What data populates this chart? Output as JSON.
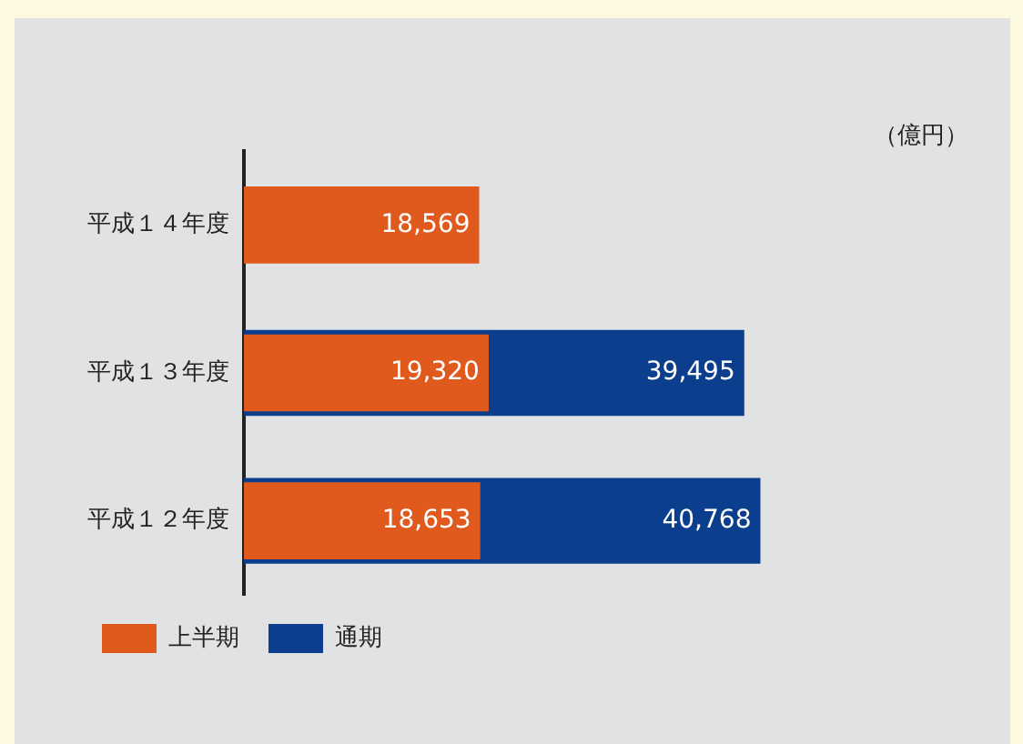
{
  "chart_data": {
    "type": "bar",
    "orientation": "horizontal",
    "annotations": [
      "（億円）"
    ],
    "categories": [
      "平成１４年度",
      "平成１３年度",
      "平成１２年度"
    ],
    "series": [
      {
        "name": "上半期",
        "color": "#e05a1e",
        "values": [
          18569,
          19320,
          18653
        ],
        "value_labels": [
          "18,569",
          "19,320",
          "18,653"
        ]
      },
      {
        "name": "通期",
        "color": "#0b3f8e",
        "values": [
          null,
          39495,
          40768
        ],
        "value_labels": [
          null,
          "39,495",
          "40,768"
        ]
      }
    ],
    "legend": "bottom left",
    "grid": false
  }
}
